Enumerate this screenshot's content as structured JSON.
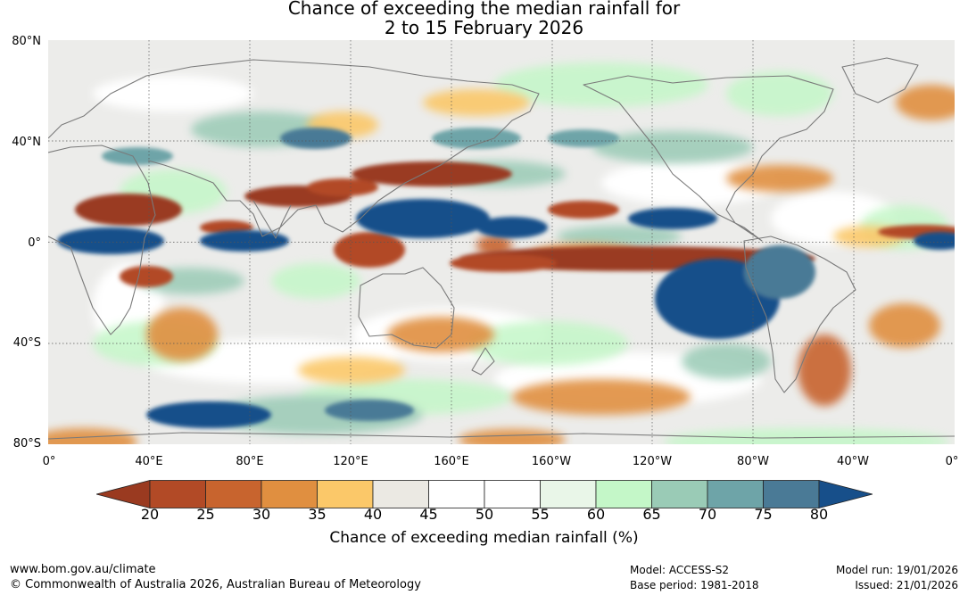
{
  "title": {
    "line1": "Chance of exceeding the median rainfall for",
    "line2": "2 to 15 February 2026"
  },
  "map": {
    "projection": "equirectangular",
    "lat_range": [
      "80°S",
      "80°N"
    ],
    "lon_range": [
      "0°",
      "0°"
    ],
    "lat_labels": [
      "80°N",
      "40°N",
      "0°",
      "40°S",
      "80°S"
    ],
    "lon_labels": [
      "0°",
      "40°E",
      "80°E",
      "120°E",
      "160°E",
      "160°W",
      "120°W",
      "80°W",
      "40°W",
      "0°"
    ]
  },
  "colorbar": {
    "label": "Chance of exceeding median rainfall (%)",
    "ticks": [
      "20",
      "25",
      "30",
      "35",
      "40",
      "45",
      "50",
      "55",
      "60",
      "65",
      "70",
      "75",
      "80"
    ],
    "colors": [
      "#9a3a20",
      "#b24a26",
      "#c8642e",
      "#e08f40",
      "#fbc869",
      "#ebe9e3",
      "#ffffff",
      "#ffffff",
      "#e9f6e8",
      "#c4f7c8",
      "#9acbb6",
      "#6ea4a8",
      "#4a7a96",
      "#174f8a"
    ]
  },
  "footer": {
    "website": "www.bom.gov.au/climate",
    "copyright": "© Commonwealth of Australia 2026, Australian Bureau of Meteorology",
    "model": "Model: ACCESS-S2",
    "base_period": "Base period: 1981-2018",
    "model_run": "Model run: 19/01/2026",
    "issued": "Issued: 21/01/2026"
  }
}
